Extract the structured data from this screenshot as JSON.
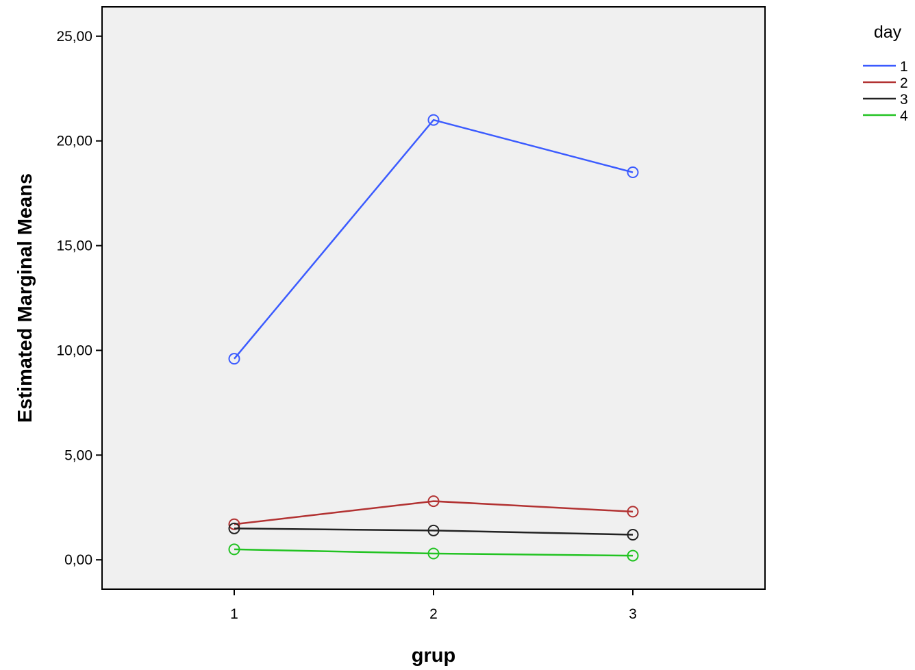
{
  "chart_data": {
    "type": "line",
    "title": "",
    "xlabel": "grup",
    "ylabel": "Estimated Marginal Means",
    "categories": [
      "1",
      "2",
      "3"
    ],
    "ylim": [
      -1.4,
      26.4
    ],
    "yticks": [
      0,
      5,
      10,
      15,
      20,
      25
    ],
    "ytick_labels": [
      "0,00",
      "5,00",
      "10,00",
      "15,00",
      "20,00",
      "25,00"
    ],
    "grid": false,
    "markers": "open-circle",
    "plot_background": "#f0f0f0",
    "legend": {
      "title": "day",
      "placement": "top-right-outside"
    },
    "series": [
      {
        "name": "1",
        "color": "#3b5bff",
        "values": [
          9.6,
          21.0,
          18.5
        ]
      },
      {
        "name": "2",
        "color": "#b23232",
        "values": [
          1.7,
          2.8,
          2.3
        ]
      },
      {
        "name": "3",
        "color": "#222222",
        "values": [
          1.5,
          1.4,
          1.2
        ]
      },
      {
        "name": "4",
        "color": "#22c322",
        "values": [
          0.5,
          0.3,
          0.2
        ]
      }
    ]
  }
}
